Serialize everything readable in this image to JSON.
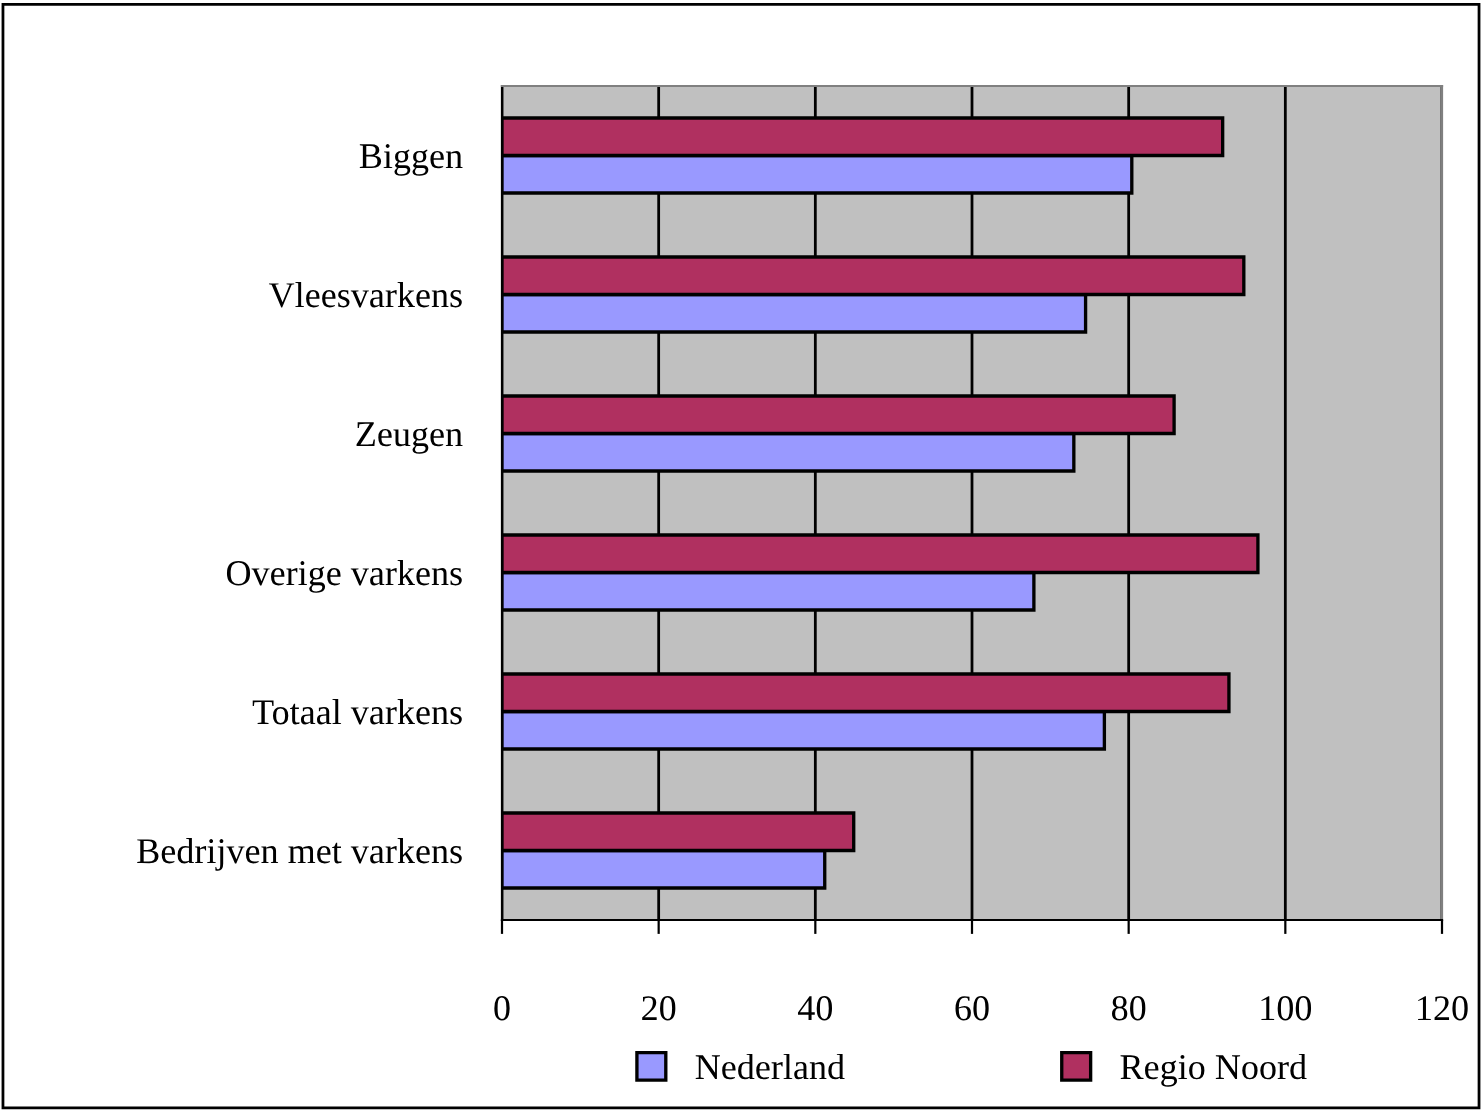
{
  "chart_data": {
    "type": "bar",
    "orientation": "horizontal",
    "categories": [
      "Biggen",
      "Vleesvarkens",
      "Zeugen",
      "Overige varkens",
      "Totaal varkens",
      "Bedrijven met varkens"
    ],
    "series": [
      {
        "name": "Nederland",
        "color": "#9999ff",
        "values": [
          80.4,
          74.5,
          73.0,
          67.9,
          76.9,
          41.2
        ]
      },
      {
        "name": "Regio Noord",
        "color": "#b03060",
        "values": [
          92.0,
          94.7,
          85.8,
          96.5,
          92.8,
          44.9
        ]
      }
    ],
    "xlim": [
      0,
      120
    ],
    "xticks": [
      0,
      20,
      40,
      60,
      80,
      100,
      120
    ],
    "grid": "x",
    "legend": "bottom"
  }
}
